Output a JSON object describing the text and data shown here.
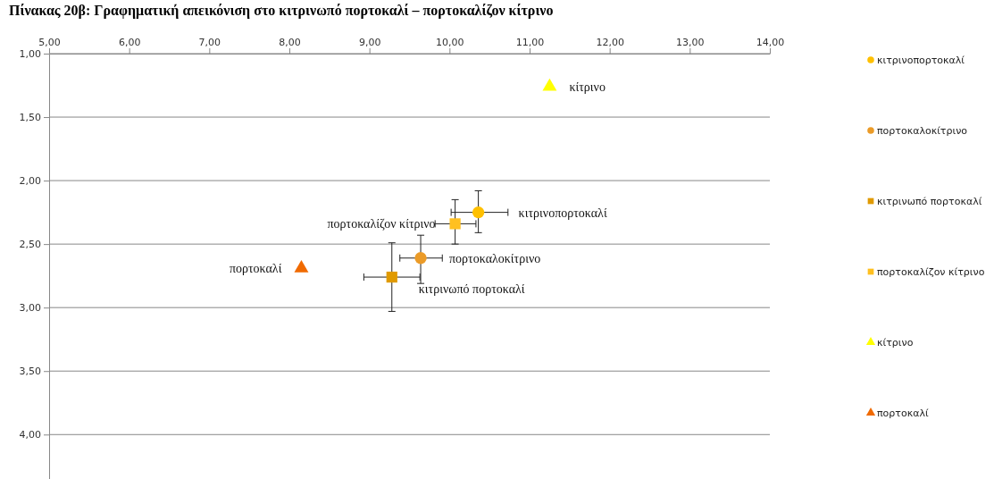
{
  "chart_data": {
    "type": "scatter",
    "title": "Πίνακας 20β: Γραφηματική απεικόνιση στο κιτρινωπό πορτοκαλί – πορτοκαλίζον κίτρινο",
    "xlim": [
      5,
      14
    ],
    "xticks": [
      {
        "value": 5,
        "label": "5,00"
      },
      {
        "value": 6,
        "label": "6,00"
      },
      {
        "value": 7,
        "label": "7,00"
      },
      {
        "value": 8,
        "label": "8,00"
      },
      {
        "value": 9,
        "label": "9,00"
      },
      {
        "value": 10,
        "label": "10,00"
      },
      {
        "value": 11,
        "label": "11,00"
      },
      {
        "value": 12,
        "label": "12,00"
      },
      {
        "value": 13,
        "label": "13,00"
      },
      {
        "value": 14,
        "label": "14,00"
      }
    ],
    "ylim": [
      4.35,
      1
    ],
    "yticks": [
      {
        "value": 1,
        "label": "1,00"
      },
      {
        "value": 1.5,
        "label": "1,50"
      },
      {
        "value": 2,
        "label": "2,00"
      },
      {
        "value": 2.5,
        "label": "2,50"
      },
      {
        "value": 3,
        "label": "3,00"
      },
      {
        "value": 3.5,
        "label": "3,50"
      },
      {
        "value": 4,
        "label": "4,00"
      }
    ],
    "grid": "y",
    "legend": "right",
    "series": [
      {
        "name": "κιτρινοπορτοκαλί",
        "color": "#ffc000",
        "marker": "circle",
        "x": [
          10.36
        ],
        "values": [
          2.25
        ],
        "errors": [
          [
            2.08,
            2.41
          ]
        ],
        "xerrors": [
          [
            10.02,
            10.73
          ]
        ]
      },
      {
        "name": "πορτοκαλοκίτρινο",
        "color": "#eb9b28",
        "marker": "circle",
        "x": [
          9.64
        ],
        "values": [
          2.61
        ],
        "errors": [
          [
            2.43,
            2.81
          ]
        ],
        "xerrors": [
          [
            9.38,
            9.91
          ]
        ]
      },
      {
        "name": "κιτρινωπό πορτοκαλί",
        "color": "#e09a00",
        "marker": "square",
        "x": [
          9.28
        ],
        "values": [
          2.76
        ],
        "errors": [
          [
            2.49,
            3.03
          ]
        ],
        "xerrors": [
          [
            8.93,
            9.63
          ]
        ]
      },
      {
        "name": "πορτοκαλίζον κίτρινο",
        "color": "#ffc020",
        "marker": "square",
        "x": [
          10.07
        ],
        "values": [
          2.34
        ],
        "errors": [
          [
            2.15,
            2.5
          ]
        ],
        "xerrors": [
          [
            9.82,
            10.33
          ]
        ]
      },
      {
        "name": "κίτρινο",
        "color": "#ffff00",
        "marker": "triangle",
        "x": [
          11.25
        ],
        "values": [
          1.26
        ]
      },
      {
        "name": "πορτοκαλί",
        "color": "#f06a00",
        "marker": "triangle",
        "x": [
          8.15
        ],
        "values": [
          2.69
        ]
      }
    ]
  }
}
